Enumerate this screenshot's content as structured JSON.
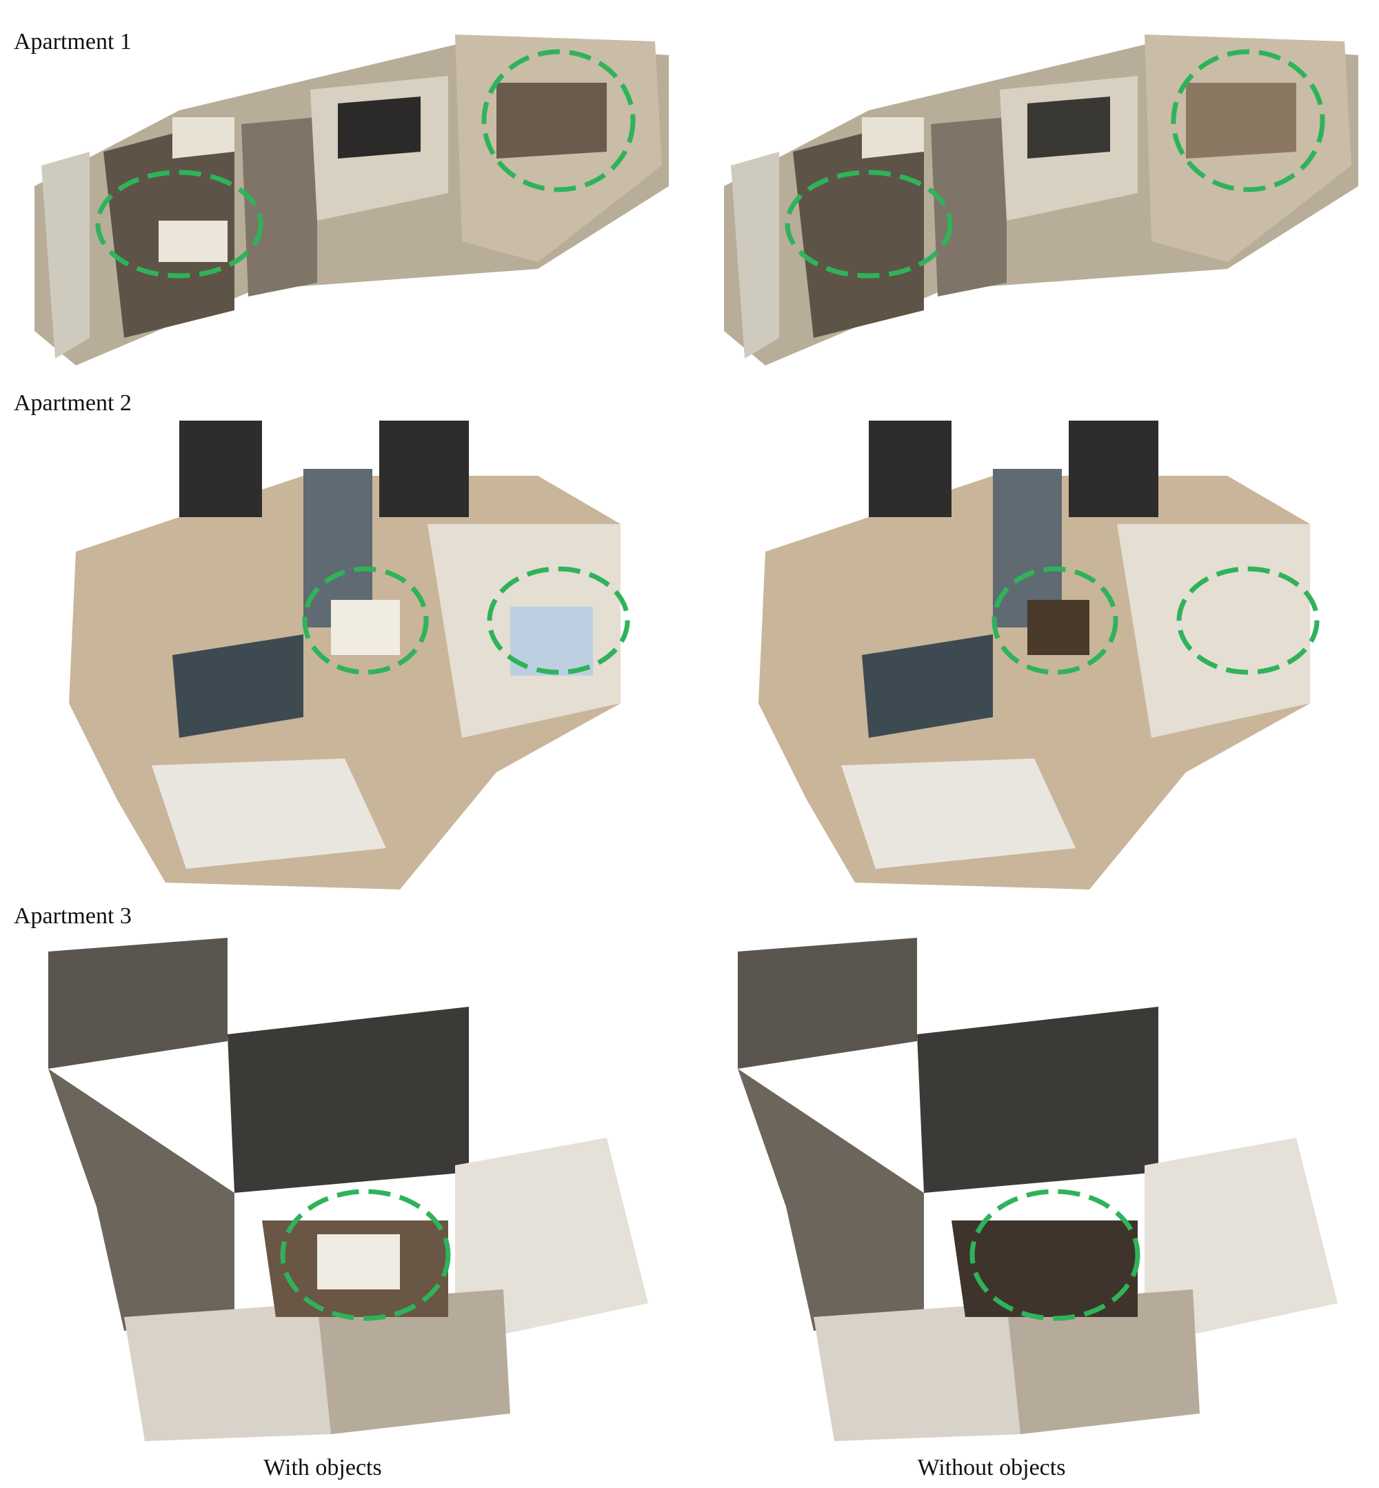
{
  "rows": [
    {
      "label": "Apartment 1"
    },
    {
      "label": "Apartment 2"
    },
    {
      "label": "Apartment 3"
    }
  ],
  "columns": [
    {
      "label": "With objects"
    },
    {
      "label": "Without objects"
    }
  ],
  "colors": {
    "highlight": "#2fb35a",
    "wall": "#e9e3d6",
    "floor": "#a98c6c",
    "dark_wall": "#3a3a38"
  }
}
